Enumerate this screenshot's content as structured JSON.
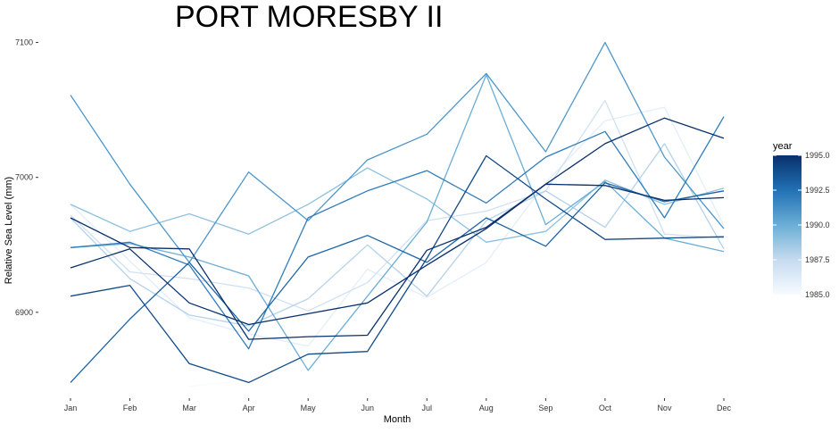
{
  "chart_data": {
    "type": "line",
    "title": "PORT MORESBY II",
    "xlabel": "Month",
    "ylabel": "Relative Sea Level (mm)",
    "categories": [
      "Jan",
      "Feb",
      "Mar",
      "Apr",
      "May",
      "Jun",
      "Jul",
      "Aug",
      "Sep",
      "Oct",
      "Nov",
      "Dec"
    ],
    "ylim": [
      6843,
      7105
    ],
    "yticks": [
      6900,
      7000,
      7100
    ],
    "grid": false,
    "legend": {
      "title": "year",
      "position": "right",
      "type": "colorbar",
      "range": [
        1985,
        1995
      ],
      "labels": [
        "1995.0",
        "1992.5",
        "1990.0",
        "1987.5",
        "1985.0"
      ],
      "color_low": "#f7fbff",
      "color_high": "#08306b"
    },
    "series": [
      {
        "year": 1985,
        "values": [
          null,
          null,
          6845,
          6850,
          null,
          null,
          null,
          null,
          null,
          null,
          null,
          null
        ]
      },
      {
        "year": 1986,
        "values": [
          6980,
          6938,
          6896,
          6884,
          6875,
          6932,
          6911,
          6937,
          6996,
          7042,
          7052,
          6964
        ]
      },
      {
        "year": 1987,
        "values": [
          6972,
          6930,
          6925,
          6918,
          6901,
          6922,
          6968,
          6975,
          6990,
          7057,
          6958,
          6955
        ]
      },
      {
        "year": 1988,
        "values": [
          6970,
          6925,
          6898,
          6890,
          6910,
          6950,
          6912,
          6968,
          6990,
          6963,
          7025,
          6947
        ]
      },
      {
        "year": 1989,
        "values": [
          6980,
          6960,
          6973,
          6958,
          6980,
          7007,
          6984,
          6952,
          6960,
          6998,
          6980,
          6992
        ]
      },
      {
        "year": 1990,
        "values": [
          6948,
          6951,
          6941,
          6927,
          6857,
          6912,
          6967,
          7076,
          6965,
          6997,
          6955,
          6945
        ]
      },
      {
        "year": 1991,
        "values": [
          7061,
          6995,
          6937,
          7004,
          6968,
          7013,
          7032,
          7077,
          7019,
          7100,
          7015,
          6962
        ]
      },
      {
        "year": 1992,
        "values": [
          6948,
          6952,
          6935,
          6873,
          6970,
          6990,
          7005,
          6981,
          7015,
          7034,
          6970,
          7045
        ]
      },
      {
        "year": 1993,
        "values": [
          6848,
          6895,
          6937,
          6886,
          6941,
          6957,
          6937,
          6970,
          6949,
          6996,
          6982,
          6990
        ]
      },
      {
        "year": 1994,
        "values": [
          6912,
          6920,
          6862,
          6848,
          6869,
          6871,
          6940,
          7016,
          6984,
          6954,
          6955,
          6956
        ]
      },
      {
        "year": 1995,
        "values": [
          6970,
          6948,
          6947,
          6880,
          6882,
          6883,
          6946,
          6963,
          6995,
          7025,
          7044,
          7029
        ]
      },
      {
        "year": 1995,
        "values": [
          6933,
          6947,
          6907,
          6891,
          6899,
          6907,
          6935,
          6962,
          6995,
          6994,
          6983,
          6985
        ]
      }
    ]
  }
}
